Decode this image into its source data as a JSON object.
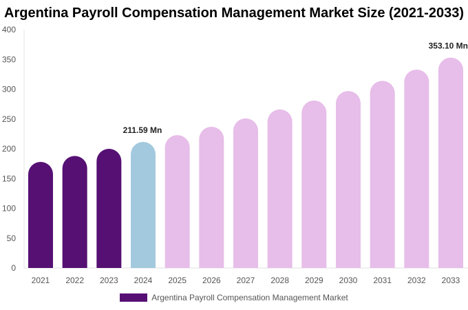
{
  "chart_data": {
    "type": "bar",
    "title": "Argentina Payroll Compensation Management Market Size (2021-2033)",
    "categories": [
      "2021",
      "2022",
      "2023",
      "2024",
      "2025",
      "2026",
      "2027",
      "2028",
      "2029",
      "2030",
      "2031",
      "2032",
      "2033"
    ],
    "series": [
      {
        "name": "Argentina Payroll Compensation Management Market",
        "values": [
          178,
          188,
          200,
          211.59,
          223,
          237,
          251,
          266,
          281,
          297,
          314,
          333,
          353.1
        ]
      }
    ],
    "data_labels": {
      "2024": "211.59 Mn",
      "2033": "353.10 Mn"
    },
    "ylim": [
      0,
      400
    ],
    "yticks": [
      0,
      50,
      100,
      150,
      200,
      250,
      300,
      350,
      400
    ],
    "grid": false,
    "legend_position": "bottom",
    "colors": {
      "historical": "#561073",
      "base_year": "#a3c9de",
      "forecast": "#e7bde9"
    }
  }
}
